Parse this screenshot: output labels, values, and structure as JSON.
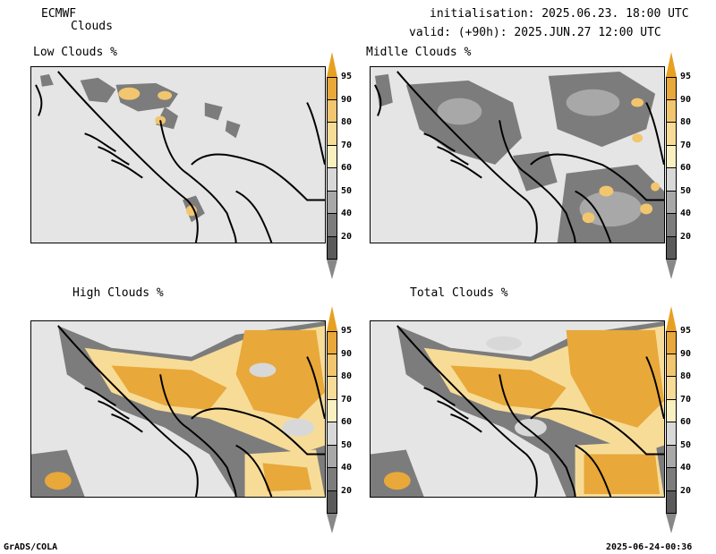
{
  "header": {
    "model": "ECMWF",
    "param": "Clouds",
    "init": "initialisation: 2025.06.23. 18:00 UTC",
    "valid": "valid: (+90h): 2025.JUN.27 12:00 UTC"
  },
  "panels": [
    {
      "title": "Low Clouds %"
    },
    {
      "title": "Midlle Clouds %"
    },
    {
      "title": "High Clouds %"
    },
    {
      "title": "Total Clouds %"
    }
  ],
  "colorbar": {
    "labels": [
      "95",
      "90",
      "80",
      "70",
      "60",
      "50",
      "40",
      "20"
    ],
    "colors": [
      "#e8a83a",
      "#f2c66e",
      "#f7dc98",
      "#f8f0c0",
      "#d8d8d8",
      "#a8a8a8",
      "#7c7c7c",
      "#5a5a5a"
    ],
    "top_color": "#e8a020",
    "bottom_color": "#ffffff"
  },
  "footer": {
    "left": "GrADS/COLA",
    "right": "2025-06-24-00:36"
  }
}
